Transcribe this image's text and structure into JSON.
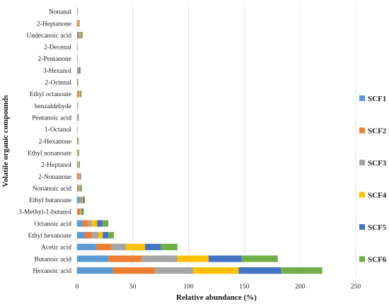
{
  "chart_data": {
    "type": "bar",
    "orientation": "horizontal",
    "stacked": true,
    "xlabel": "Relative abundance (%)",
    "ylabel": "Volatile organic compounds",
    "xlim": [
      0,
      250
    ],
    "xticks": [
      0,
      50,
      100,
      150,
      200,
      250
    ],
    "grid": true,
    "legend_position": "right",
    "categories": [
      "Nonanal",
      "2-Heptanone",
      "Undecanoic acid",
      "2-Decenal",
      "2-Pentanone",
      "3-Hexanol",
      "2-Octenal",
      "Ethyl octanoate",
      "benzaldehyde",
      "Pentanoic acid",
      "1-Octanol",
      "2-Hexanone",
      "Ethyl nonanoate",
      "2-Heptanol",
      "2-Nonanone",
      "Nonanoic acid",
      "Ethyl butanoate",
      "3-Methyl-1-butanol",
      "Octanoic acid",
      "Ethyl hexanoate",
      "Acetic acid",
      "Butanoic acid",
      "Hexanoic acid"
    ],
    "series": [
      {
        "name": "SCF1",
        "color": "#5b9bd5",
        "values": [
          0.2,
          0.3,
          1.0,
          0.1,
          0.1,
          0.5,
          0.3,
          0.5,
          0.2,
          0.3,
          0.1,
          0.3,
          0.3,
          0.3,
          0.5,
          0.5,
          2.0,
          0.5,
          5.0,
          7.0,
          17.0,
          28.0,
          32.0
        ]
      },
      {
        "name": "SCF2",
        "color": "#ed7d31",
        "values": [
          0.2,
          0.8,
          1.0,
          0.1,
          0.1,
          0.5,
          0.2,
          1.0,
          0.2,
          0.3,
          0.1,
          0.3,
          0.5,
          0.5,
          1.0,
          1.0,
          1.0,
          2.0,
          5.0,
          6.0,
          14.0,
          30.0,
          38.0
        ]
      },
      {
        "name": "SCF3",
        "color": "#a5a5a5",
        "values": [
          0.1,
          0.5,
          1.0,
          0.1,
          0.1,
          0.5,
          0.2,
          0.5,
          0.2,
          0.3,
          0.1,
          0.2,
          0.3,
          0.3,
          0.5,
          0.8,
          1.5,
          0.5,
          3.0,
          6.0,
          13.0,
          32.0,
          34.0
        ]
      },
      {
        "name": "SCF4",
        "color": "#ffc000",
        "values": [
          0.1,
          0.5,
          0.5,
          0.1,
          0.1,
          0.2,
          0.2,
          1.0,
          0.1,
          0.2,
          0.1,
          0.2,
          0.3,
          0.3,
          0.5,
          0.5,
          0.5,
          1.0,
          5.0,
          4.0,
          17.0,
          28.0,
          41.0
        ]
      },
      {
        "name": "SCF5",
        "color": "#4472c4",
        "values": [
          0.1,
          0.2,
          0.5,
          0.1,
          0.1,
          1.0,
          0.2,
          0.5,
          0.1,
          0.3,
          0.1,
          0.2,
          0.3,
          0.3,
          0.5,
          0.5,
          1.0,
          1.0,
          5.0,
          5.0,
          14.0,
          30.0,
          38.0
        ]
      },
      {
        "name": "SCF6",
        "color": "#70ad47",
        "values": [
          0.1,
          0.2,
          1.0,
          0.1,
          0.1,
          0.5,
          0.2,
          0.5,
          0.1,
          0.2,
          0.1,
          0.3,
          0.3,
          0.8,
          0.5,
          1.0,
          1.0,
          1.0,
          5.0,
          5.0,
          15.0,
          32.0,
          37.0
        ]
      }
    ]
  }
}
